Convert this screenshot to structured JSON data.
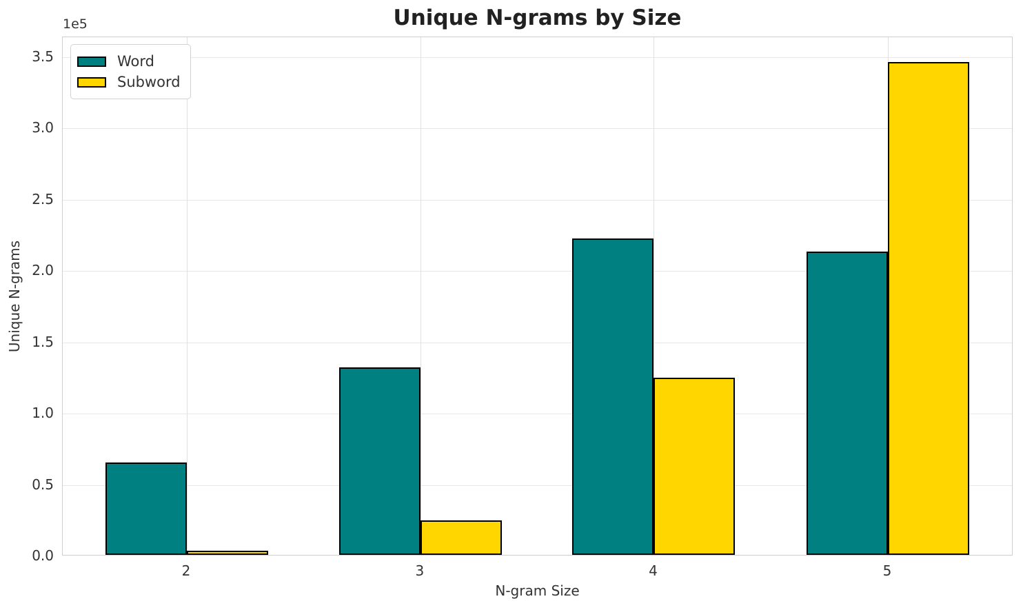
{
  "chart_data": {
    "type": "bar",
    "title": "Unique N-grams by Size",
    "xlabel": "N-gram Size",
    "ylabel": "Unique N-grams",
    "y_offset_label": "1e5",
    "categories": [
      "2",
      "3",
      "4",
      "5"
    ],
    "series": [
      {
        "name": "Word",
        "color": "#008080",
        "values": [
          65000,
          131400,
          221800,
          212500
        ]
      },
      {
        "name": "Subword",
        "color": "#FFD600",
        "values": [
          2900,
          24200,
          124100,
          345800
        ]
      }
    ],
    "bar_edge_color": "#000000",
    "ylim": [
      0,
      364000
    ],
    "yticks": [
      {
        "v": 0,
        "label": "0.0"
      },
      {
        "v": 50000,
        "label": "0.5"
      },
      {
        "v": 100000,
        "label": "1.0"
      },
      {
        "v": 150000,
        "label": "1.5"
      },
      {
        "v": 200000,
        "label": "2.0"
      },
      {
        "v": 250000,
        "label": "2.5"
      },
      {
        "v": 300000,
        "label": "3.0"
      },
      {
        "v": 350000,
        "label": "3.5"
      }
    ],
    "grid": true,
    "legend_position": "upper left"
  },
  "colors": {
    "background": "#ffffff",
    "grid_h": "#e7e7e7",
    "grid_v": "#e0e0e0",
    "spine": "#cfcfcf",
    "text": "#333333",
    "title": "#212121"
  }
}
